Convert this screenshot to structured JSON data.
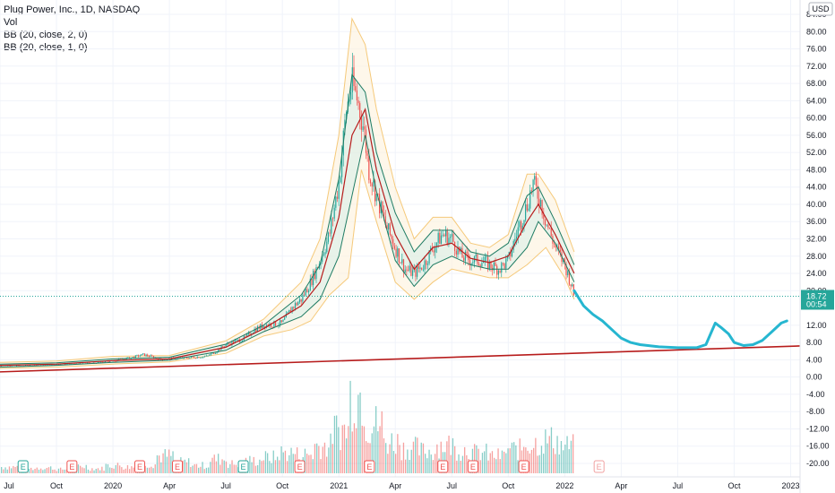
{
  "legend": {
    "title": "Plug Power, Inc., 1D, NASDAQ",
    "studies": [
      "Vol",
      "BB (20, close, 2, 0)",
      "BB (20, close, 1, 0)"
    ]
  },
  "currency": "USD",
  "price_tag": {
    "value": "18.72",
    "countdown": "00:54"
  },
  "colors": {
    "up": "#26a69a",
    "down": "#ef5350",
    "bb_outer": "#f5c97a",
    "bb_inner": "#1e7b63",
    "bb_basis": "#b71c1c",
    "forecast": "#26b6d0",
    "trendline": "#b71c1c",
    "price_tag": "#26a69a"
  },
  "chart_data": {
    "type": "line",
    "title": "Plug Power, Inc., 1D, NASDAQ",
    "price_axis": {
      "ticks": [
        "84.00",
        "80.00",
        "76.00",
        "72.00",
        "68.00",
        "64.00",
        "60.00",
        "56.00",
        "52.00",
        "48.00",
        "44.00",
        "40.00",
        "36.00",
        "32.00",
        "28.00",
        "24.00",
        "20.00",
        "12.00",
        "8.00",
        "4.00",
        "0.00",
        "-4.00",
        "-8.00",
        "-12.00",
        "-16.00",
        "-20.00"
      ],
      "range": [
        -22,
        86
      ]
    },
    "time_axis": {
      "labels": [
        "Jul",
        "Oct",
        "2020",
        "Apr",
        "Jul",
        "Oct",
        "2021",
        "Apr",
        "Jul",
        "Oct",
        "2022",
        "Apr",
        "Jul",
        "Oct",
        "2023"
      ],
      "label_t": [
        0,
        3,
        6,
        9,
        12,
        15,
        18,
        21,
        24,
        27,
        30,
        33,
        36,
        39,
        42
      ],
      "range": [
        0,
        42.5
      ]
    },
    "price": [
      [
        0,
        2.6
      ],
      [
        1,
        2.6
      ],
      [
        2,
        2.8
      ],
      [
        3,
        2.9
      ],
      [
        4,
        3.2
      ],
      [
        5,
        3.3
      ],
      [
        6,
        3.8
      ],
      [
        7,
        4.5
      ],
      [
        7.6,
        5.2
      ],
      [
        8,
        4.8
      ],
      [
        8.6,
        4.0
      ],
      [
        9,
        4.2
      ],
      [
        10,
        4.5
      ],
      [
        11,
        4.8
      ],
      [
        11.5,
        6.0
      ],
      [
        12,
        7.5
      ],
      [
        13,
        9.0
      ],
      [
        13.5,
        11.0
      ],
      [
        14,
        12.0
      ],
      [
        15,
        12.5
      ],
      [
        15.5,
        16.0
      ],
      [
        16,
        18.0
      ],
      [
        16.5,
        22.0
      ],
      [
        17,
        27.0
      ],
      [
        17.5,
        33.0
      ],
      [
        18,
        45.0
      ],
      [
        18.4,
        62.0
      ],
      [
        18.7,
        68.0
      ],
      [
        19,
        64.0
      ],
      [
        19.3,
        58.0
      ],
      [
        19.6,
        48.0
      ],
      [
        20,
        42.0
      ],
      [
        20.5,
        35.0
      ],
      [
        21,
        30.0
      ],
      [
        21.5,
        25.0
      ],
      [
        22,
        24.0
      ],
      [
        22.5,
        26.0
      ],
      [
        23,
        30.0
      ],
      [
        23.5,
        33.0
      ],
      [
        24,
        32.0
      ],
      [
        24.5,
        28.0
      ],
      [
        25,
        27.0
      ],
      [
        25.5,
        27.0
      ],
      [
        26,
        26.0
      ],
      [
        26.5,
        25.0
      ],
      [
        27,
        27.0
      ],
      [
        27.5,
        34.0
      ],
      [
        28,
        40.0
      ],
      [
        28.3,
        45.0
      ],
      [
        28.7,
        41.0
      ],
      [
        29,
        36.0
      ],
      [
        29.5,
        30.0
      ],
      [
        30,
        26.0
      ],
      [
        30.3,
        22.0
      ],
      [
        30.5,
        18.72
      ]
    ],
    "bb_outer_upper": [
      [
        0,
        3.4
      ],
      [
        3,
        3.7
      ],
      [
        6,
        4.8
      ],
      [
        9,
        5.0
      ],
      [
        12,
        8.4
      ],
      [
        14,
        13.4
      ],
      [
        16,
        22
      ],
      [
        17,
        32
      ],
      [
        18,
        56
      ],
      [
        18.7,
        83
      ],
      [
        19.4,
        77
      ],
      [
        20,
        62
      ],
      [
        21,
        44
      ],
      [
        22,
        32
      ],
      [
        23,
        37
      ],
      [
        24,
        37
      ],
      [
        25,
        31
      ],
      [
        26,
        30
      ],
      [
        27,
        33
      ],
      [
        28,
        47
      ],
      [
        28.6,
        47
      ],
      [
        29.5,
        41
      ],
      [
        30.5,
        29
      ]
    ],
    "bb_outer_lower": [
      [
        0,
        2.0
      ],
      [
        3,
        2.3
      ],
      [
        6,
        3.0
      ],
      [
        9,
        3.5
      ],
      [
        12,
        5.5
      ],
      [
        14,
        9.5
      ],
      [
        15.5,
        11
      ],
      [
        16.5,
        13
      ],
      [
        17.5,
        19
      ],
      [
        18.5,
        23
      ],
      [
        19.2,
        48
      ],
      [
        20,
        36
      ],
      [
        21,
        22
      ],
      [
        22,
        18
      ],
      [
        23,
        22
      ],
      [
        24,
        25
      ],
      [
        25,
        24
      ],
      [
        26,
        23
      ],
      [
        27,
        23
      ],
      [
        28,
        26
      ],
      [
        29,
        30
      ],
      [
        30,
        23
      ],
      [
        30.5,
        18
      ]
    ],
    "bb_inner_upper": [
      [
        0,
        3.0
      ],
      [
        3,
        3.3
      ],
      [
        6,
        4.2
      ],
      [
        9,
        4.6
      ],
      [
        12,
        7.6
      ],
      [
        14,
        12.0
      ],
      [
        16,
        19
      ],
      [
        17,
        26
      ],
      [
        18,
        46
      ],
      [
        18.7,
        70
      ],
      [
        19.4,
        66
      ],
      [
        20,
        52
      ],
      [
        21,
        38
      ],
      [
        22,
        29
      ],
      [
        23,
        34
      ],
      [
        24,
        34
      ],
      [
        25,
        29
      ],
      [
        26,
        28
      ],
      [
        27,
        31
      ],
      [
        28,
        42
      ],
      [
        28.6,
        44
      ],
      [
        29.5,
        36
      ],
      [
        30.5,
        26
      ]
    ],
    "bb_inner_lower": [
      [
        0,
        2.3
      ],
      [
        3,
        2.7
      ],
      [
        6,
        3.4
      ],
      [
        9,
        3.9
      ],
      [
        12,
        6.2
      ],
      [
        14,
        10.5
      ],
      [
        16,
        14
      ],
      [
        17,
        18
      ],
      [
        18,
        28
      ],
      [
        18.7,
        42
      ],
      [
        19.4,
        56
      ],
      [
        20,
        43
      ],
      [
        21,
        27
      ],
      [
        22,
        21
      ],
      [
        23,
        26
      ],
      [
        24,
        28
      ],
      [
        25,
        26
      ],
      [
        26,
        25
      ],
      [
        27,
        25
      ],
      [
        28,
        30
      ],
      [
        28.6,
        36
      ],
      [
        29.5,
        31
      ],
      [
        30.5,
        22
      ]
    ],
    "bb_basis": [
      [
        0,
        2.7
      ],
      [
        3,
        3.0
      ],
      [
        6,
        3.8
      ],
      [
        9,
        4.2
      ],
      [
        12,
        6.9
      ],
      [
        14,
        11.2
      ],
      [
        16,
        16.5
      ],
      [
        17,
        22
      ],
      [
        18,
        37
      ],
      [
        18.7,
        56
      ],
      [
        19.4,
        62
      ],
      [
        20,
        48
      ],
      [
        21,
        33
      ],
      [
        22,
        25
      ],
      [
        23,
        30
      ],
      [
        24,
        31
      ],
      [
        25,
        27.5
      ],
      [
        26,
        26.5
      ],
      [
        27,
        28
      ],
      [
        28,
        36
      ],
      [
        28.6,
        40
      ],
      [
        29.5,
        33
      ],
      [
        30.5,
        24
      ]
    ],
    "forecast_path": [
      [
        30.5,
        20
      ],
      [
        31,
        16.5
      ],
      [
        31.5,
        14.5
      ],
      [
        32,
        13.0
      ],
      [
        32.5,
        11.0
      ],
      [
        33,
        9.0
      ],
      [
        33.5,
        8.0
      ],
      [
        34,
        7.5
      ],
      [
        35,
        7.0
      ],
      [
        36,
        6.8
      ],
      [
        37,
        6.8
      ],
      [
        37.5,
        7.5
      ],
      [
        38,
        12.5
      ],
      [
        38.3,
        11.5
      ],
      [
        38.7,
        10.0
      ],
      [
        39,
        8.0
      ],
      [
        39.5,
        7.3
      ],
      [
        40,
        7.5
      ],
      [
        40.5,
        8.5
      ],
      [
        41,
        10.5
      ],
      [
        41.5,
        12.5
      ],
      [
        41.8,
        13.0
      ]
    ],
    "trendline": [
      [
        0,
        1.2
      ],
      [
        42.5,
        7.2
      ]
    ],
    "volume_relative": [
      0.08,
      0.06,
      0.07,
      0.05,
      0.09,
      0.06,
      0.1,
      0.08,
      0.12,
      0.22,
      0.14,
      0.1,
      0.18,
      0.12,
      0.16,
      0.2,
      0.26,
      0.24,
      0.35,
      0.55,
      1.0,
      0.62,
      0.4,
      0.32,
      0.28,
      0.36,
      0.3,
      0.26,
      0.22,
      0.3,
      0.38,
      0.42,
      0.34,
      0.2
    ]
  },
  "earnings_markers": [
    {
      "label": "E",
      "t": 1.2,
      "color": "#26a69a"
    },
    {
      "label": "E",
      "t": 3.8,
      "color": "#ef5350"
    },
    {
      "label": "E",
      "t": 7.4,
      "color": "#ef5350"
    },
    {
      "label": "E",
      "t": 9.4,
      "color": "#ef5350"
    },
    {
      "label": "E",
      "t": 12.9,
      "color": "#26a69a"
    },
    {
      "label": "E",
      "t": 15.9,
      "color": "#ef5350"
    },
    {
      "label": "E",
      "t": 19.6,
      "color": "#ef5350"
    },
    {
      "label": "E",
      "t": 23.5,
      "color": "#ef5350"
    },
    {
      "label": "E",
      "t": 25.1,
      "color": "#ef5350"
    },
    {
      "label": "E",
      "t": 27.8,
      "color": "#ef5350"
    },
    {
      "label": "E",
      "t": 31.8,
      "color": "#f0a0a0"
    }
  ]
}
